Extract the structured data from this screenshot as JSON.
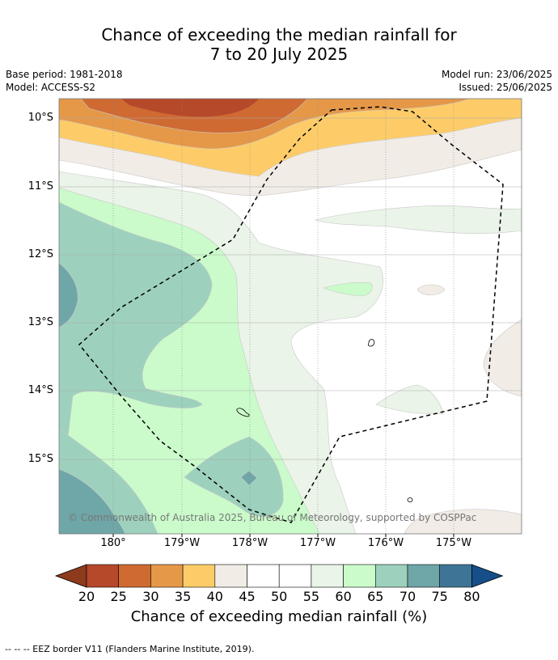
{
  "title_line1": "Chance of exceeding the median rainfall for",
  "title_line2": "7 to 20 July 2025",
  "base_period": "Base period: 1981-2018",
  "model": "Model: ACCESS-S2",
  "model_run": "Model run: 23/06/2025",
  "issued": "Issued: 25/06/2025",
  "lat_labels": [
    "10°S",
    "11°S",
    "12°S",
    "13°S",
    "14°S",
    "15°S"
  ],
  "lon_labels": [
    "180°",
    "179°W",
    "178°W",
    "177°W",
    "176°W",
    "175°W"
  ],
  "copyright": "© Commonwealth of Australia 2025, Bureau of Meteorology, supported by COSPPac",
  "colorbar": {
    "ticks": [
      "20",
      "25",
      "30",
      "35",
      "40",
      "45",
      "50",
      "55",
      "60",
      "65",
      "70",
      "75",
      "80"
    ],
    "colors": [
      "#8e3a1c",
      "#b5492a",
      "#cf6a32",
      "#e59848",
      "#fdcc69",
      "#f1ece6",
      "#ffffff",
      "#ffffff",
      "#eaf4e8",
      "#cbfbcb",
      "#9dd1bd",
      "#6fa6a7",
      "#3e7596",
      "#164e8a"
    ],
    "title": "Chance of exceeding median rainfall (%)"
  },
  "footer": "--  --  -- EEZ border V11 (Flanders Marine Institute, 2019)."
}
